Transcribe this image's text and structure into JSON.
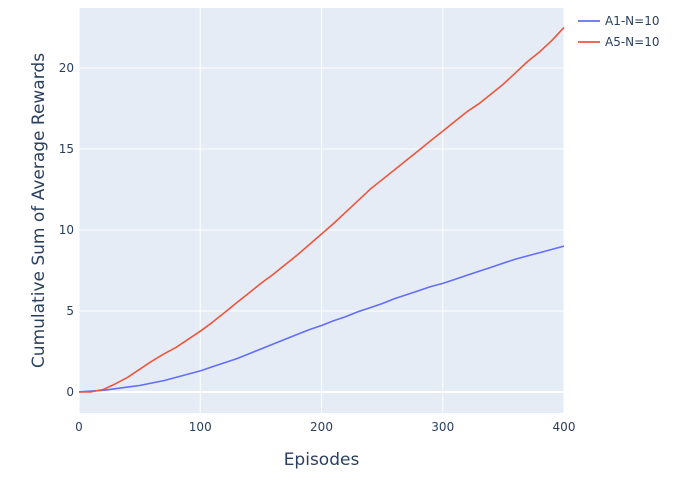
{
  "chart_data": {
    "type": "line",
    "title": "",
    "xlabel": "Episodes",
    "ylabel": "Cumulative Sum of Average Rewards",
    "xlim": [
      0,
      400
    ],
    "ylim": [
      -1.3,
      23.7
    ],
    "x_ticks": [
      0,
      100,
      200,
      300,
      400
    ],
    "y_ticks": [
      0,
      5,
      10,
      15,
      20
    ],
    "grid": true,
    "legend_position": "top-right",
    "plot_background": "#e5ecf6",
    "series": [
      {
        "name": "A1-N=10",
        "color": "#636efa",
        "x": [
          0,
          10,
          20,
          30,
          40,
          50,
          60,
          70,
          80,
          90,
          100,
          110,
          120,
          130,
          140,
          150,
          160,
          170,
          180,
          190,
          200,
          210,
          220,
          230,
          240,
          250,
          260,
          270,
          280,
          290,
          300,
          310,
          320,
          330,
          340,
          350,
          360,
          370,
          380,
          390,
          400
        ],
        "y": [
          0,
          0.05,
          0.1,
          0.2,
          0.3,
          0.4,
          0.55,
          0.7,
          0.9,
          1.1,
          1.3,
          1.55,
          1.8,
          2.05,
          2.35,
          2.65,
          2.95,
          3.25,
          3.55,
          3.85,
          4.1,
          4.4,
          4.65,
          4.95,
          5.2,
          5.45,
          5.75,
          6.0,
          6.25,
          6.5,
          6.7,
          6.95,
          7.2,
          7.45,
          7.7,
          7.95,
          8.2,
          8.4,
          8.6,
          8.8,
          9.0
        ]
      },
      {
        "name": "A5-N=10",
        "color": "#ef553b",
        "x": [
          0,
          10,
          20,
          30,
          40,
          50,
          60,
          70,
          80,
          90,
          100,
          110,
          120,
          130,
          140,
          150,
          160,
          170,
          180,
          190,
          200,
          210,
          220,
          230,
          240,
          250,
          260,
          270,
          280,
          290,
          300,
          310,
          320,
          330,
          340,
          350,
          360,
          370,
          380,
          390,
          400
        ],
        "y": [
          0,
          0.0,
          0.15,
          0.5,
          0.9,
          1.4,
          1.9,
          2.35,
          2.75,
          3.25,
          3.75,
          4.3,
          4.9,
          5.5,
          6.1,
          6.7,
          7.25,
          7.85,
          8.45,
          9.1,
          9.75,
          10.4,
          11.1,
          11.8,
          12.5,
          13.1,
          13.7,
          14.3,
          14.9,
          15.5,
          16.1,
          16.7,
          17.3,
          17.8,
          18.4,
          19.0,
          19.7,
          20.4,
          21.0,
          21.7,
          22.5
        ]
      }
    ]
  }
}
